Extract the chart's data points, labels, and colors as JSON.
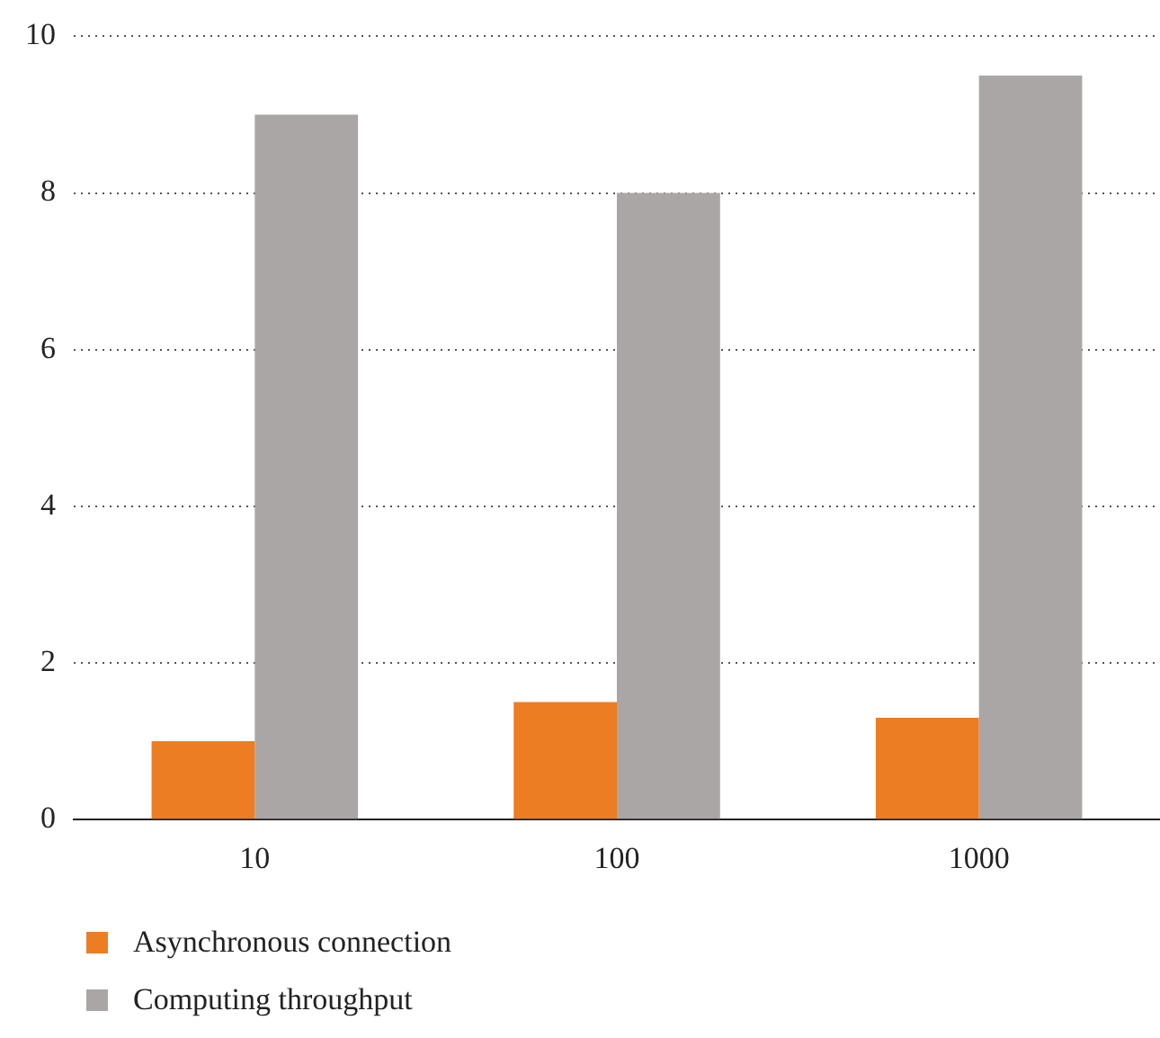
{
  "chart_data": {
    "type": "bar",
    "categories": [
      "10",
      "100",
      "1000"
    ],
    "series": [
      {
        "name": "Asynchronous connection",
        "color": "#ed7d22",
        "values": [
          1.0,
          1.5,
          1.3
        ]
      },
      {
        "name": "Computing throughput",
        "color": "#aaa6a5",
        "values": [
          9.0,
          8.0,
          9.5
        ]
      }
    ],
    "ylim": [
      0,
      10
    ],
    "yticks": [
      0,
      2,
      4,
      6,
      8,
      10
    ],
    "grid": "y",
    "legend": "bottom left"
  }
}
